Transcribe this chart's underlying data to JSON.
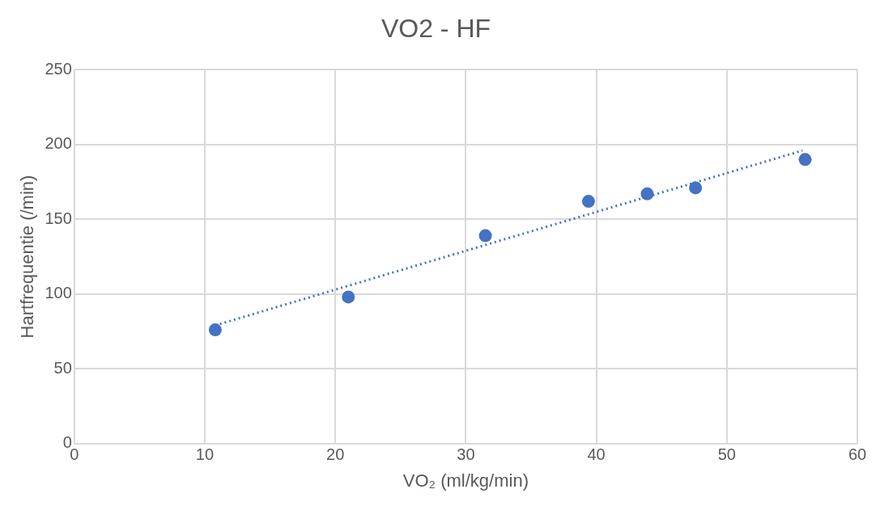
{
  "chart_data": {
    "type": "scatter",
    "title": "VO2 - HF",
    "xlabel": "VO₂ (ml/kg/min)",
    "ylabel": "Hartfrequentie (/min)",
    "series": [
      {
        "type": "scatter",
        "color": "#4472c4",
        "marker": "circle",
        "x": [
          10.8,
          21.0,
          31.5,
          39.4,
          43.9,
          47.6,
          56.0
        ],
        "values": [
          76,
          98,
          139,
          162,
          167,
          171,
          190
        ]
      },
      {
        "type": "line",
        "color": "#4472c4",
        "marker": "none",
        "line_style": "dotted",
        "x": [
          10.8,
          55.8
        ],
        "values": [
          79,
          196
        ]
      }
    ],
    "xlim": [
      0,
      60
    ],
    "xticks": [
      0,
      10,
      20,
      30,
      40,
      50,
      60
    ],
    "ylim": [
      0,
      250
    ],
    "yticks": [
      0,
      50,
      100,
      150,
      200,
      250
    ],
    "grid": true,
    "legend": false
  }
}
